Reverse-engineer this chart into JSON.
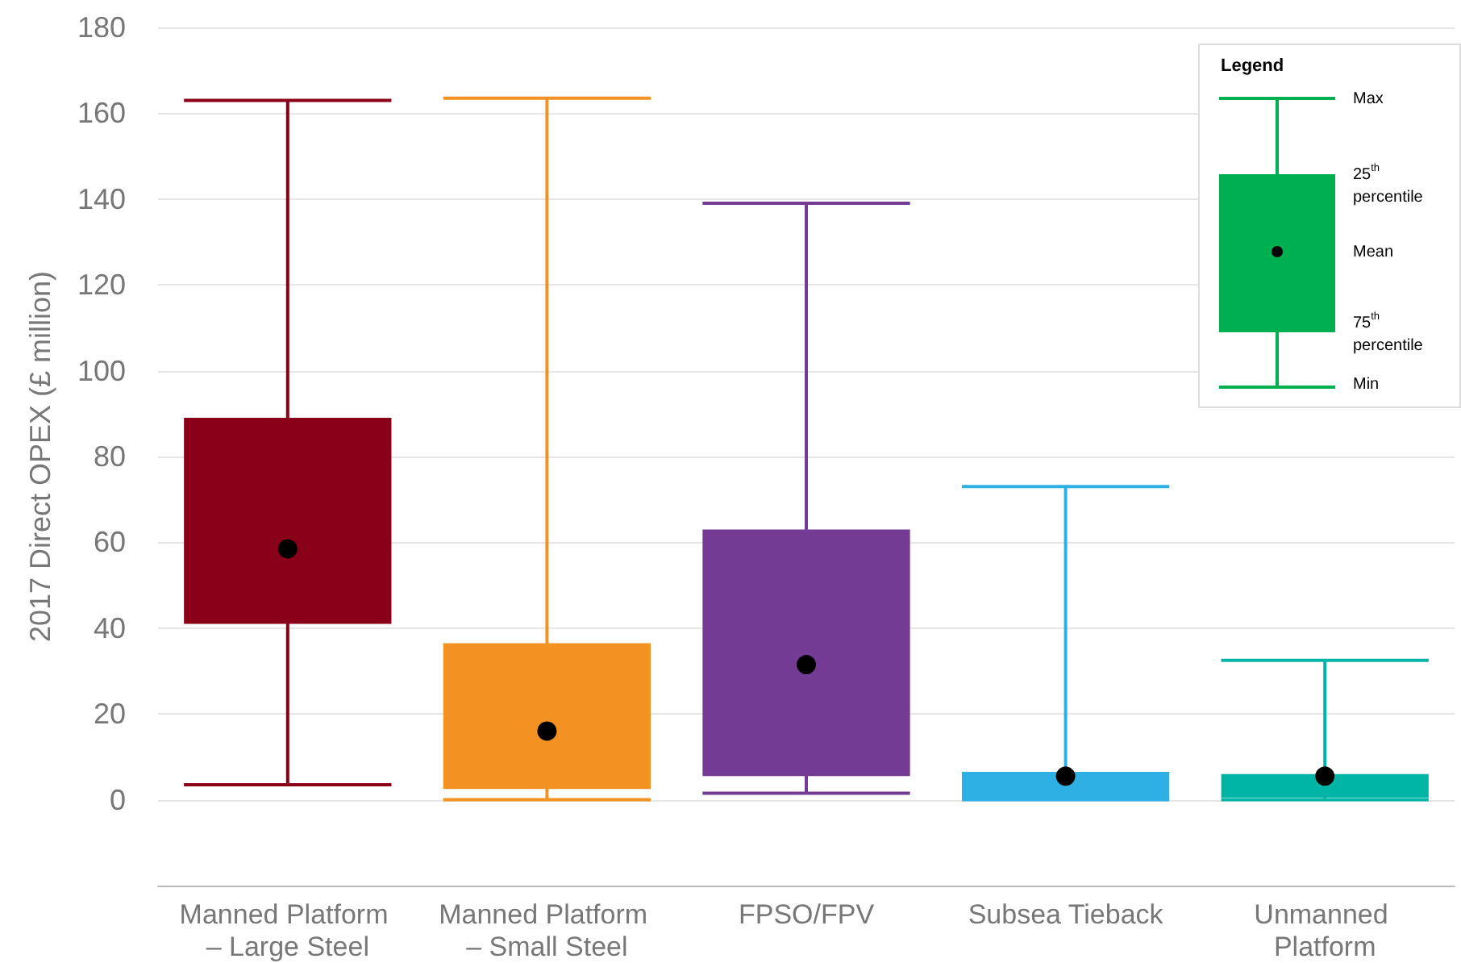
{
  "chart_data": {
    "type": "box",
    "ylabel": "2017 Direct OPEX (£ million)",
    "categories": [
      "Manned Platform – Large Steel",
      "Manned Platform – Small Steel",
      "FPSO/FPV",
      "Subsea Tieback",
      "Unmanned Platform"
    ],
    "colors": [
      "#8b0019",
      "#f39222",
      "#743b94",
      "#2fb0e5",
      "#00b5a5"
    ],
    "boxes": [
      {
        "low": 3.5,
        "q1": 41,
        "q3": 89,
        "high": 163,
        "mean": 58.5
      },
      {
        "low": 0,
        "q1": 2.5,
        "q3": 36.5,
        "high": 163.5,
        "mean": 16
      },
      {
        "low": 1.5,
        "q1": 5.5,
        "q3": 63,
        "high": 139,
        "mean": 31.5
      },
      {
        "low": 0,
        "q1": 0,
        "q3": 6.5,
        "high": 73,
        "mean": 5.5
      },
      {
        "low": 0,
        "q1": 0.5,
        "q3": 6,
        "high": 32.5,
        "mean": 5.5
      }
    ],
    "ylim": [
      -20,
      180
    ],
    "yticks": [
      0,
      20,
      40,
      60,
      80,
      100,
      120,
      140,
      160,
      180
    ],
    "grid": "y",
    "annotations": [
      "Legend",
      "Max",
      "25$^{th}$ percentile",
      "Mean",
      "75$^{th}$ percentile",
      "Min"
    ]
  }
}
